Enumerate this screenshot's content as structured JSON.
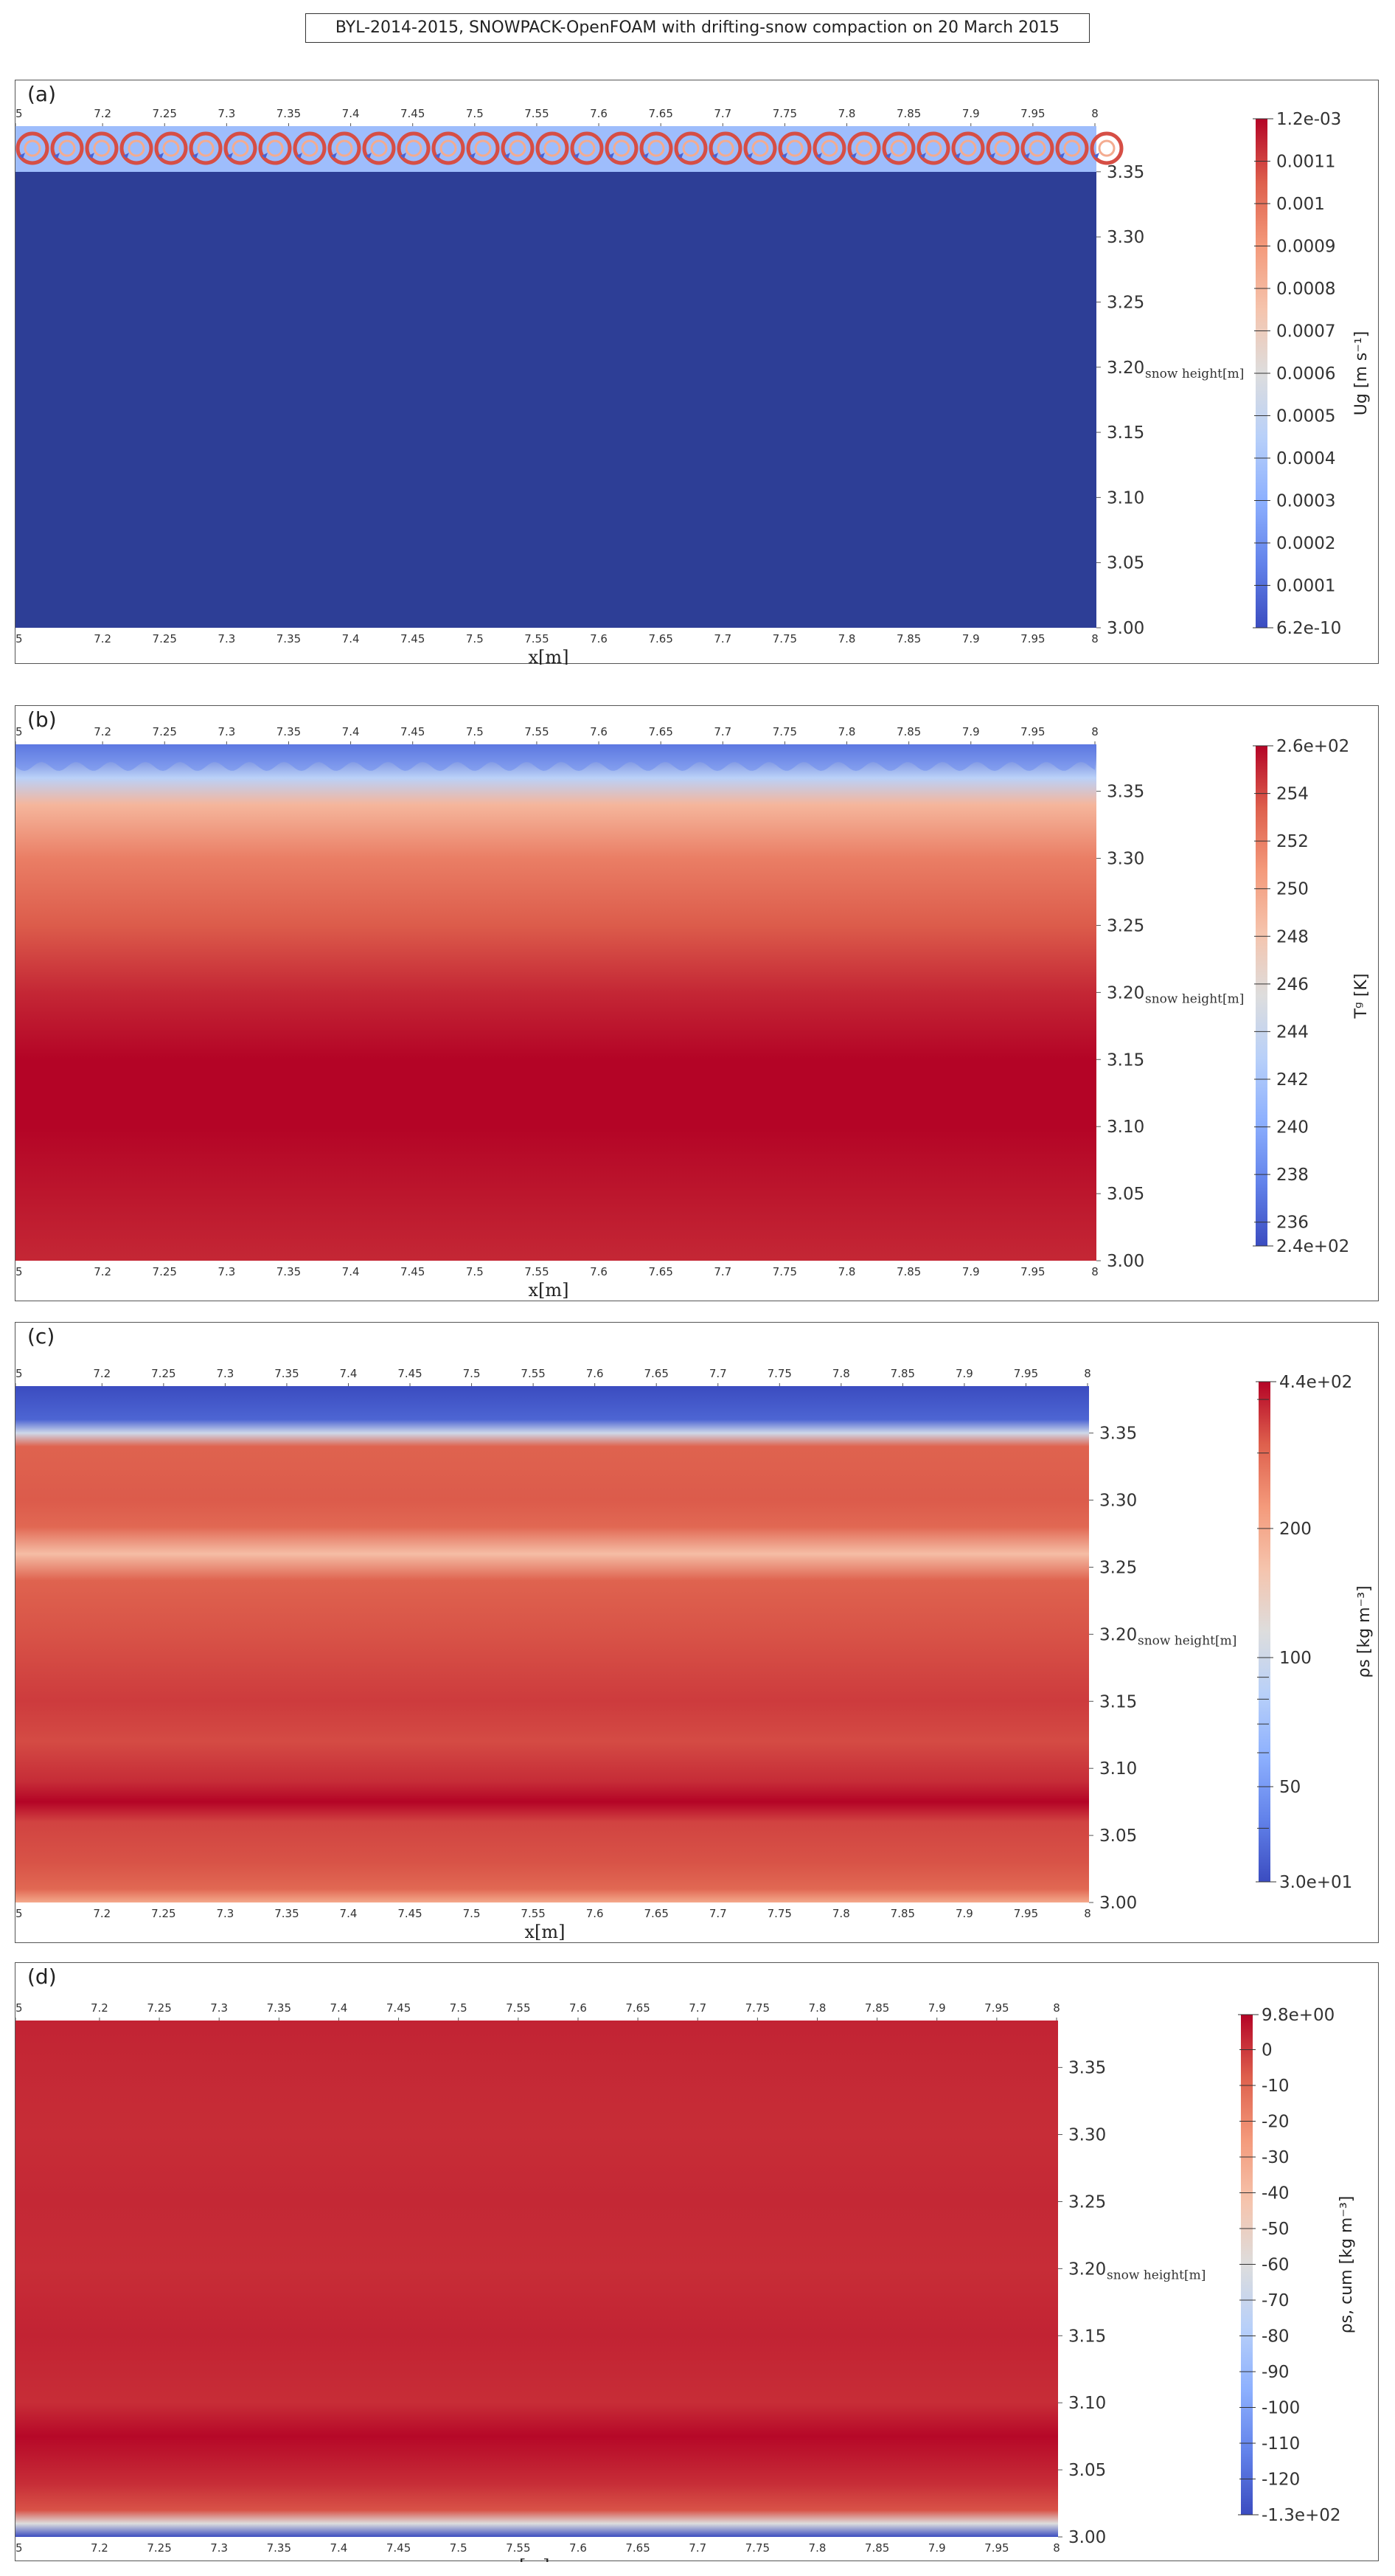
{
  "title": "BYL-2014-2015, SNOWPACK-OpenFOAM with drifting-snow compaction on 20 March 2015",
  "chart_data": [
    {
      "panel": "(a)",
      "type": "heatmap",
      "xlabel": "x[m]",
      "ylabel": "snow height[m]",
      "x_ticks": [
        "5",
        "7.2",
        "7.25",
        "7.3",
        "7.35",
        "7.4",
        "7.45",
        "7.5",
        "7.55",
        "7.6",
        "7.65",
        "7.7",
        "7.75",
        "7.8",
        "7.85",
        "7.9",
        "7.95",
        "8"
      ],
      "y_ticks": [
        "3.35",
        "3.30",
        "3.25",
        "3.20",
        "3.15",
        "3.10",
        "3.05",
        "3.00"
      ],
      "xlim": [
        7.15,
        8.0
      ],
      "ylim": [
        3.0,
        3.385
      ],
      "colorbar": {
        "label": "Ug [m s⁻¹]",
        "min_label": "6.2e-10",
        "max_label": "1.2e-03",
        "range": [
          6.2e-10,
          0.0012
        ],
        "ticks": [
          "0.0011",
          "0.001",
          "0.0009",
          "0.0008",
          "0.0007",
          "0.0006",
          "0.0005",
          "0.0004",
          "0.0003",
          "0.0002",
          "0.0001"
        ],
        "scale": "linear",
        "colormap": "cool-to-warm"
      },
      "field": "gas velocity: near zero (blue) throughout snowpack; recirculating vortex cells with values up to ~1.2e-03 in the top air layer above ~3.35 m, periodic every ~0.05 m in x"
    },
    {
      "panel": "(b)",
      "type": "heatmap",
      "xlabel": "x[m]",
      "ylabel": "snow height[m]",
      "x_ticks": [
        "5",
        "7.2",
        "7.25",
        "7.3",
        "7.35",
        "7.4",
        "7.45",
        "7.5",
        "7.55",
        "7.6",
        "7.65",
        "7.7",
        "7.75",
        "7.8",
        "7.85",
        "7.9",
        "7.95",
        "8"
      ],
      "y_ticks": [
        "3.35",
        "3.30",
        "3.25",
        "3.20",
        "3.15",
        "3.10",
        "3.05",
        "3.00"
      ],
      "xlim": [
        7.15,
        8.0
      ],
      "ylim": [
        3.0,
        3.385
      ],
      "colorbar": {
        "label": "Tᵍ [K]",
        "min_label": "2.4e+02",
        "max_label": "2.6e+02",
        "range": [
          235,
          256
        ],
        "ticks": [
          "254",
          "252",
          "250",
          "248",
          "246",
          "244",
          "242",
          "240",
          "238",
          "236"
        ],
        "scale": "linear",
        "colormap": "cool-to-warm"
      },
      "profile": {
        "height": [
          3.0,
          3.05,
          3.1,
          3.15,
          3.2,
          3.25,
          3.3,
          3.34,
          3.36,
          3.385
        ],
        "value": [
          255,
          255.5,
          256,
          256,
          255,
          253.5,
          252,
          249,
          243,
          236
        ]
      }
    },
    {
      "panel": "(c)",
      "type": "heatmap",
      "xlabel": "x[m]",
      "ylabel": "snow height[m]",
      "x_ticks": [
        "5",
        "7.2",
        "7.25",
        "7.3",
        "7.35",
        "7.4",
        "7.45",
        "7.5",
        "7.55",
        "7.6",
        "7.65",
        "7.7",
        "7.75",
        "7.8",
        "7.85",
        "7.9",
        "7.95",
        "8"
      ],
      "y_ticks": [
        "3.35",
        "3.30",
        "3.25",
        "3.20",
        "3.15",
        "3.10",
        "3.05",
        "3.00"
      ],
      "xlim": [
        7.15,
        8.0
      ],
      "ylim": [
        3.0,
        3.385
      ],
      "colorbar": {
        "label": "ρs [kg m⁻³]",
        "min_label": "3.0e+01",
        "max_label": "4.4e+02",
        "range": [
          30,
          440
        ],
        "ticks": [
          "200",
          "100",
          "50"
        ],
        "scale": "log",
        "colormap": "cool-to-warm"
      },
      "profile": {
        "height": [
          3.0,
          3.01,
          3.03,
          3.06,
          3.075,
          3.09,
          3.12,
          3.15,
          3.2,
          3.24,
          3.26,
          3.28,
          3.3,
          3.34,
          3.35,
          3.36,
          3.385
        ],
        "value": [
          200,
          300,
          330,
          350,
          440,
          380,
          340,
          360,
          330,
          310,
          170,
          300,
          320,
          310,
          100,
          35,
          30
        ]
      }
    },
    {
      "panel": "(d)",
      "type": "heatmap",
      "xlabel": "x[m]",
      "ylabel": "snow height[m]",
      "x_ticks": [
        "5",
        "7.2",
        "7.25",
        "7.3",
        "7.35",
        "7.4",
        "7.45",
        "7.5",
        "7.55",
        "7.6",
        "7.65",
        "7.7",
        "7.75",
        "7.8",
        "7.85",
        "7.9",
        "7.95",
        "8"
      ],
      "y_ticks": [
        "3.35",
        "3.30",
        "3.25",
        "3.20",
        "3.15",
        "3.10",
        "3.05",
        "3.00"
      ],
      "xlim": [
        7.15,
        8.0
      ],
      "ylim": [
        3.0,
        3.385
      ],
      "colorbar": {
        "label": "ρs, cum [kg m⁻³]",
        "min_label": "-1.3e+02",
        "max_label": "9.8e+00",
        "range": [
          -130,
          9.8
        ],
        "ticks": [
          "0",
          "-10",
          "-20",
          "-30",
          "-40",
          "-50",
          "-60",
          "-70",
          "-80",
          "-90",
          "-100",
          "-110",
          "-120"
        ],
        "scale": "linear",
        "colormap": "cool-to-warm"
      },
      "profile": {
        "height": [
          3.0,
          3.01,
          3.02,
          3.04,
          3.075,
          3.1,
          3.15,
          3.2,
          3.25,
          3.3,
          3.35,
          3.385
        ],
        "value": [
          -130,
          -60,
          -5,
          2,
          9,
          2,
          4,
          2,
          3,
          2,
          3,
          4
        ]
      }
    }
  ]
}
